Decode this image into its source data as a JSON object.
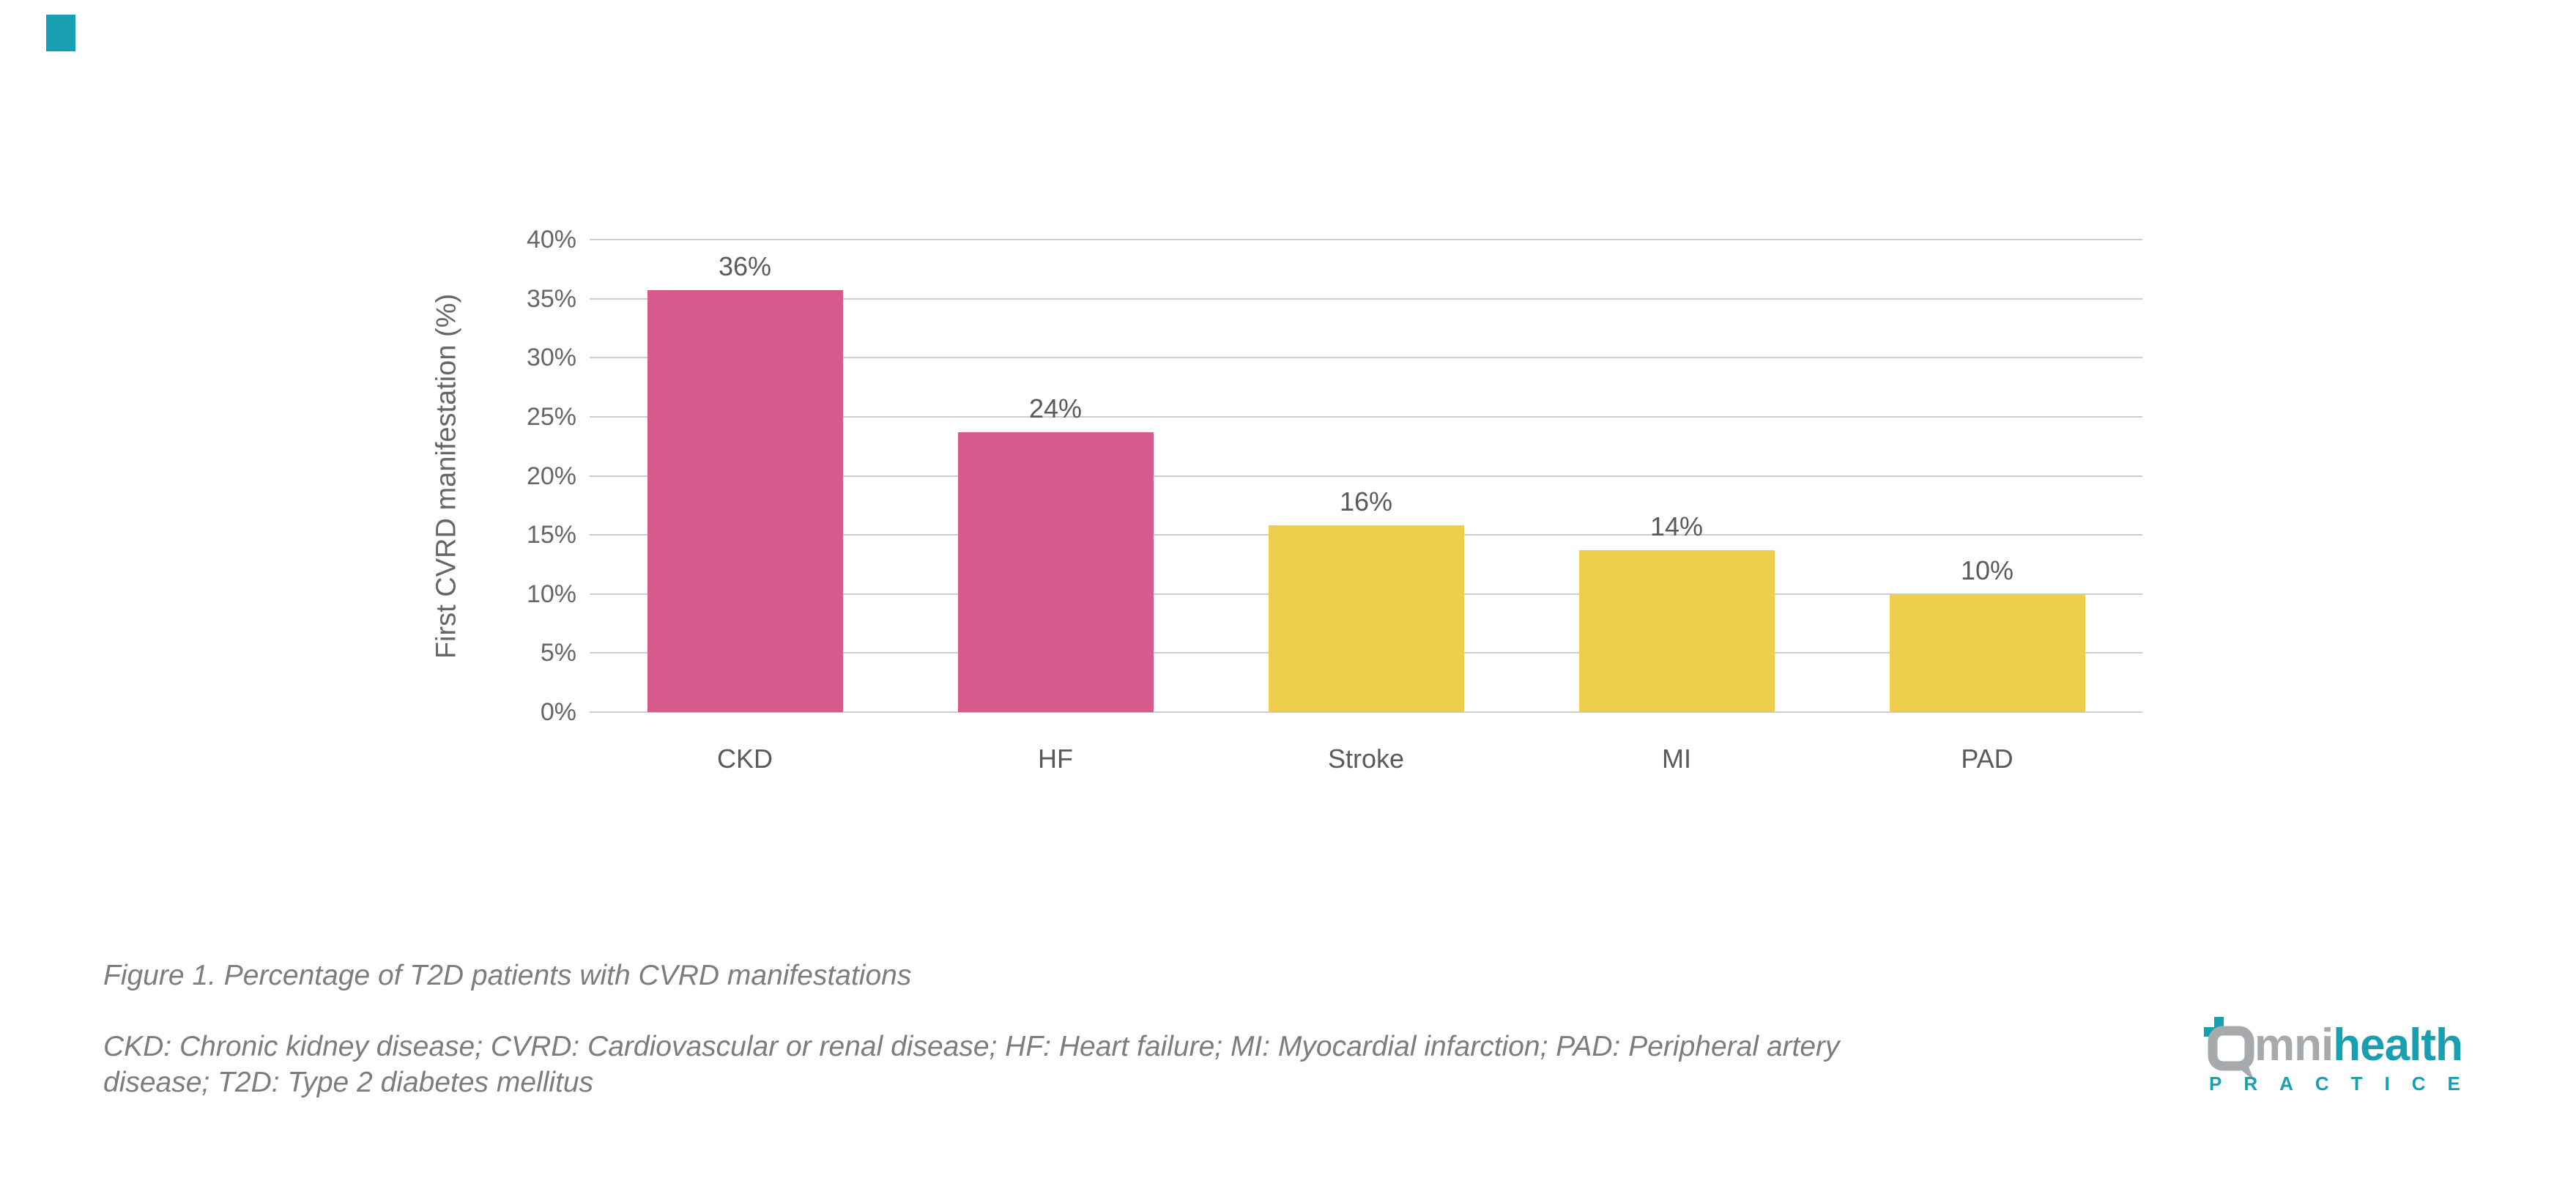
{
  "page": {
    "background": "#ffffff",
    "corner_mark_color": "#18A0B2"
  },
  "chart_data": {
    "type": "bar",
    "title": "",
    "categories": [
      "CKD",
      "HF",
      "Stroke",
      "MI",
      "PAD"
    ],
    "values": [
      36,
      24,
      16,
      14,
      10
    ],
    "data_labels": [
      "36%",
      "24%",
      "16%",
      "14%",
      "10%"
    ],
    "bar_heights_pct": [
      35.7,
      23.7,
      15.8,
      13.7,
      10.0
    ],
    "bar_colors": [
      "#D65A8C",
      "#D65A8C",
      "#EFCE4D",
      "#EFCE4D",
      "#EFCE4D"
    ],
    "xlabel": "",
    "ylabel": "First CVRD manifestation (%)",
    "ylim": [
      0,
      40
    ],
    "y_ticks": [
      "0%",
      "5%",
      "10%",
      "15%",
      "20%",
      "25%",
      "30%",
      "35%",
      "40%"
    ],
    "grid": "horizontal-only",
    "legend": "none",
    "gridline_color": "#C9CED2",
    "tick_label_color": "#666666",
    "value_label_color": "#5A5A5A",
    "axis_title_color": "#666666"
  },
  "caption": {
    "text": "Figure 1. Percentage of T2D patients with CVRD manifestations",
    "color": "#7D7D7D"
  },
  "footnote": {
    "text": "CKD: Chronic kidney disease; CVRD: Cardiovascular or renal disease; HF: Heart failure; MI: Myocardial infarction; PAD: Peripheral artery disease; T2D: Type 2 diabetes mellitus",
    "lines": [
      "CKD: Chronic kidney disease; CVRD: Cardiovascular or renal disease; HF: Heart failure; MI: Myocardial infarction; PAD: Peripheral artery",
      "disease; T2D: Type 2 diabetes mellitus"
    ],
    "color": "#7D7D7D"
  },
  "logo": {
    "brand": "omnihealth",
    "word_gray": "mni",
    "word_teal": "health",
    "subtext": "PRACTICE",
    "icon": "speech-bubble-o-with-plus",
    "gray": "#A6AAAD",
    "teal": "#189FB2"
  }
}
